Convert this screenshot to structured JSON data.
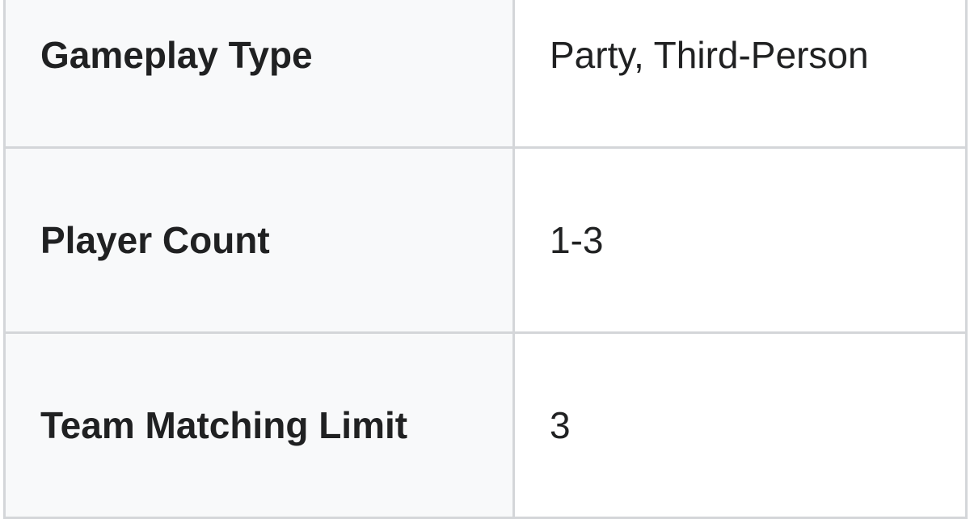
{
  "rows": [
    {
      "label": "Gameplay Type",
      "value": "Party, Third-Person"
    },
    {
      "label": "Player Count",
      "value": "1-3"
    },
    {
      "label": "Team Matching Limit",
      "value": "3"
    }
  ],
  "colors": {
    "header_bg": "#f8f9fa",
    "border": "#d4d6d9",
    "text": "#202122"
  }
}
